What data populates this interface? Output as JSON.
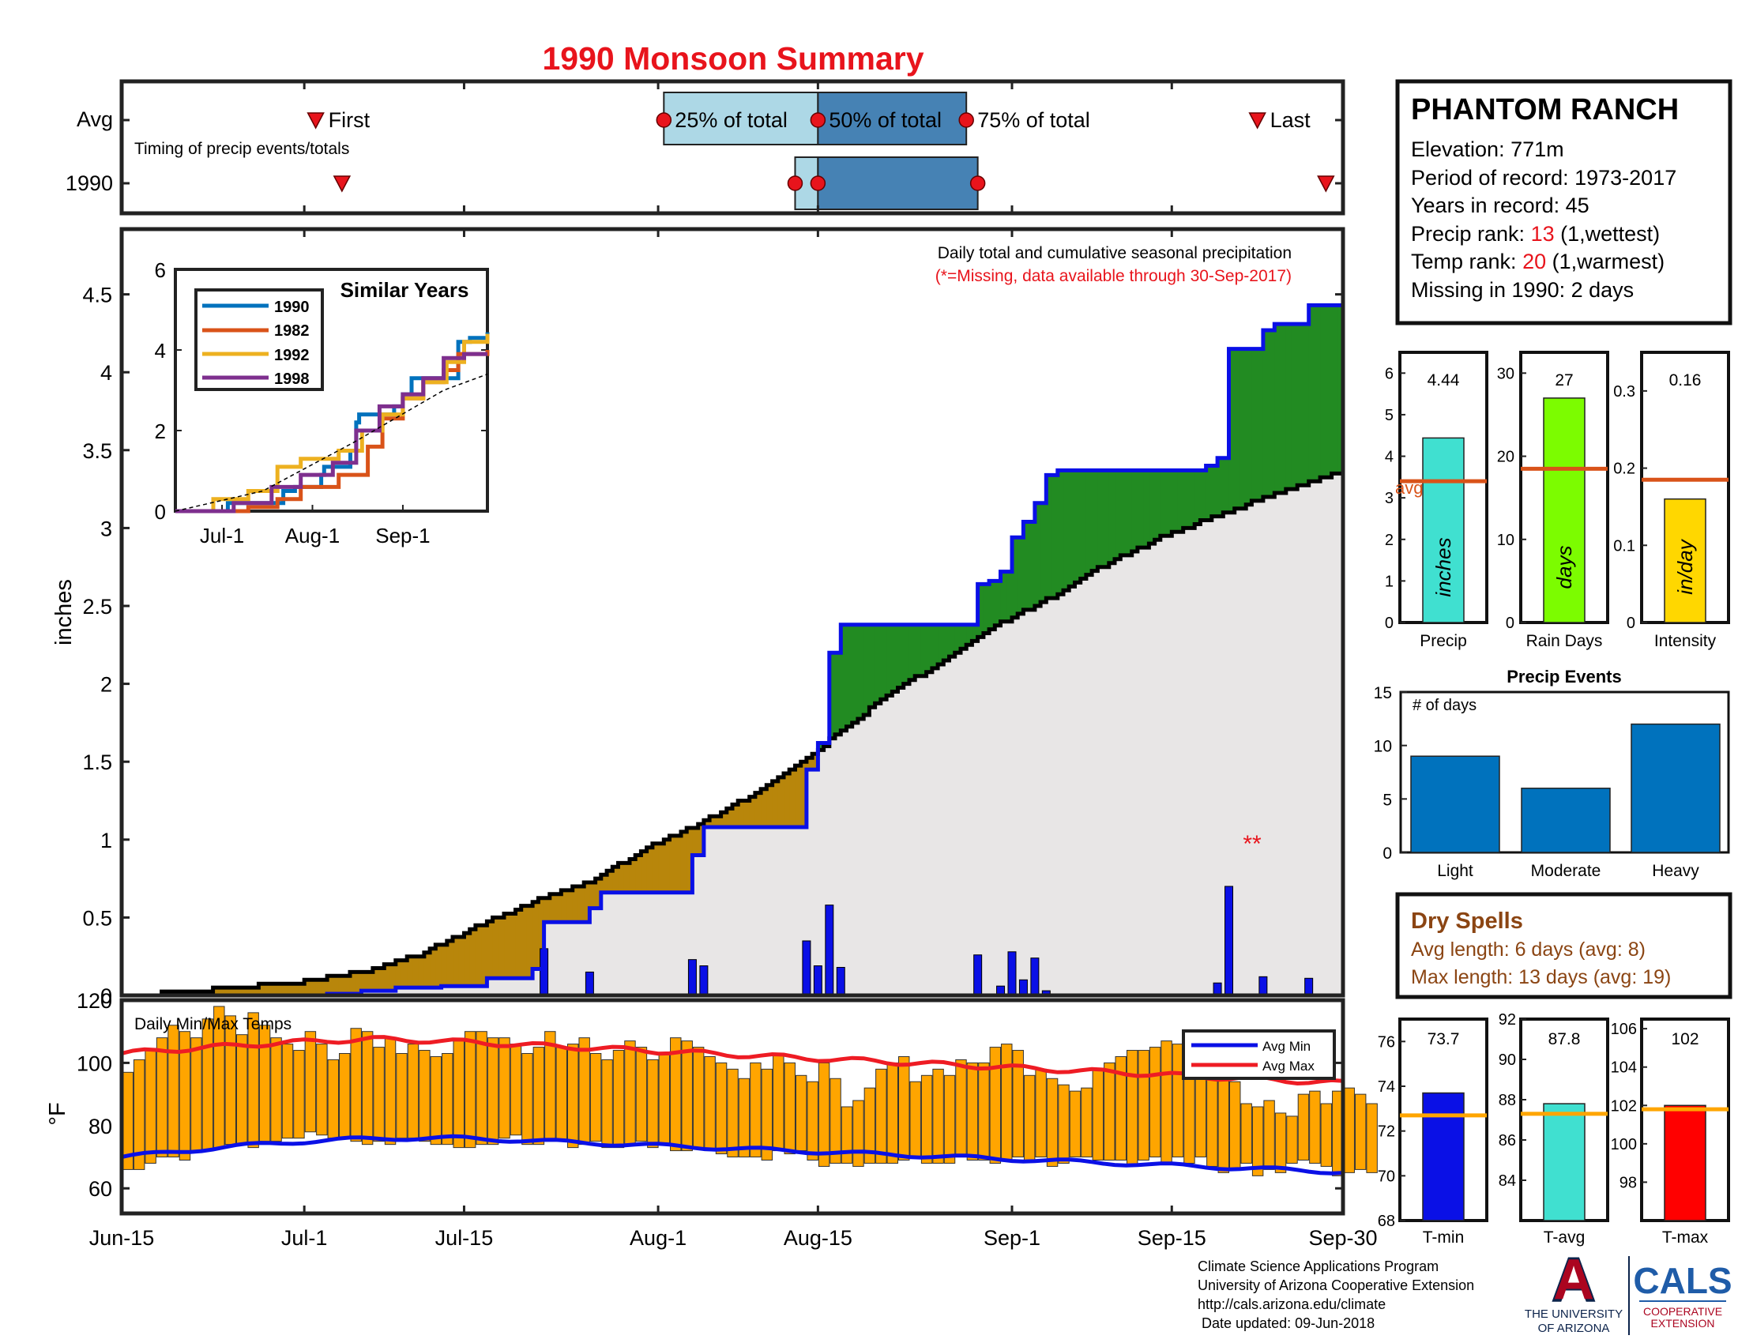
{
  "title": "1990 Monsoon Summary",
  "colors": {
    "red": "#e8141c",
    "avg_line": "#d95319",
    "precip_bar": "#40e0d0",
    "rain_bar": "#7cfc00",
    "intensity_bar": "#ffd700",
    "dry": "#8b4513",
    "green": "#228b22",
    "brown": "#b8860b",
    "gray": "#e8e6e6",
    "blue": "#0a10e6",
    "orange": "#ffa500",
    "event_bar": "#0072bd",
    "arizona_red": "#ab0520",
    "arizona_blue": "#0c234b",
    "cals_blue": "#1f5ca8"
  },
  "timing": {
    "row_avg": "Avg",
    "row_year": "1990",
    "caption": "Timing of precip events/totals",
    "first_label": "First",
    "q25_label": "25% of total",
    "q50_label": "50% of total",
    "q75_label": "75% of total",
    "last_label": "Last",
    "avg": {
      "first": 17.0,
      "q25": 47.5,
      "q50": 61.0,
      "q75": 74.0,
      "last": 99.5
    },
    "year": {
      "first": 19.3,
      "q25": 59.0,
      "q50": 61.0,
      "q75": 75.0,
      "last": 105.5
    }
  },
  "main": {
    "ylabel": "inches",
    "info_line1": "Daily total and cumulative seasonal precipitation",
    "info_line2": "(*=Missing, data available through 30-Sep-2017)",
    "missing_marker": "**",
    "y_ticks": [
      "0",
      "0.5",
      "1",
      "1.5",
      "2",
      "2.5",
      "3",
      "3.5",
      "4",
      "4.5"
    ],
    "x_ticks": [
      "Jun-15",
      "Jul-1",
      "Jul-15",
      "Aug-1",
      "Aug-15",
      "Sep-1",
      "Sep-15",
      "Sep-30"
    ]
  },
  "inset": {
    "title": "Similar Years",
    "x_ticks": [
      "Jul-1",
      "Aug-1",
      "Sep-1"
    ],
    "y_ticks": [
      "0",
      "2",
      "4",
      "6"
    ],
    "legend": [
      "1990",
      "1982",
      "1992",
      "1998"
    ]
  },
  "temps": {
    "label": "Daily Min/Max Temps",
    "ylabel": "°F",
    "y_ticks": [
      "60",
      "80",
      "100",
      "120"
    ],
    "legend_min": "Avg Min",
    "legend_max": "Avg Max"
  },
  "station": {
    "name": "PHANTOM RANCH",
    "elevation": "Elevation: 771m",
    "period": "Period of record: 1973-2017",
    "years": "Years in record: 45",
    "precip_rank_label": "Precip rank: ",
    "precip_rank_value": "13",
    "precip_rank_note": " (1,wettest)",
    "temp_rank_label": "Temp rank: ",
    "temp_rank_value": "20",
    "temp_rank_note": " (1,warmest)",
    "missing": "Missing in 1990: 2 days"
  },
  "stats": {
    "precip": {
      "value_label": "4.44",
      "unit": "inches",
      "xlabel": "Precip",
      "avg_label": "avg",
      "y_ticks": [
        "0",
        "1",
        "2",
        "3",
        "4",
        "5",
        "6"
      ]
    },
    "rain_days": {
      "value_label": "27",
      "unit": "days",
      "xlabel": "Rain Days",
      "y_ticks": [
        "0",
        "10",
        "20",
        "30"
      ]
    },
    "intensity": {
      "value_label": "0.16",
      "unit": "in/day",
      "xlabel": "Intensity",
      "y_ticks": [
        "0",
        "0.1",
        "0.2",
        "0.3"
      ]
    }
  },
  "events": {
    "title": "Precip Events",
    "inner_label": "# of days",
    "y_ticks": [
      "0",
      "5",
      "10",
      "15"
    ]
  },
  "dry_spells": {
    "title": "Dry Spells",
    "avg_length": "Avg length: 6 days (avg: 8)",
    "max_length": "Max length: 13 days (avg: 19)"
  },
  "temp_stats": {
    "tmin": {
      "value_label": "73.7",
      "xlabel": "T-min",
      "y_ticks": [
        "68",
        "70",
        "72",
        "74",
        "76"
      ]
    },
    "tavg": {
      "value_label": "87.8",
      "xlabel": "T-avg",
      "y_ticks": [
        "84",
        "86",
        "88",
        "90",
        "92"
      ]
    },
    "tmax": {
      "value_label": "102",
      "xlabel": "T-max",
      "y_ticks": [
        "98",
        "100",
        "102",
        "104",
        "106"
      ]
    }
  },
  "footer": {
    "line1": "Climate Science Applications Program",
    "line2": "University of Arizona Cooperative Extension",
    "line3": "http://cals.arizona.edu/climate",
    "line4": " Date updated: 09-Jun-2018",
    "ua_line1": "THE UNIVERSITY",
    "ua_line2": "OF ARIZONA",
    "ua_letter": "A",
    "cals": "CALS",
    "cals_sub1": "COOPERATIVE",
    "cals_sub2": "EXTENSION"
  },
  "chart_data": [
    {
      "type": "area",
      "name": "cumulative",
      "title": "Daily total and cumulative seasonal precipitation",
      "ylabel": "inches",
      "xlim": [
        "2017-06-15",
        "2017-09-30"
      ],
      "ylim": [
        0,
        4.93
      ],
      "cum_1990": [
        {
          "x": "2017-06-15",
          "y": 0
        },
        {
          "x": "2017-07-01",
          "y": 0
        },
        {
          "x": "2017-07-03",
          "y": 0.01
        },
        {
          "x": "2017-07-06",
          "y": 0.03
        },
        {
          "x": "2017-07-09",
          "y": 0.05
        },
        {
          "x": "2017-07-13",
          "y": 0.06
        },
        {
          "x": "2017-07-17",
          "y": 0.11
        },
        {
          "x": "2017-07-21",
          "y": 0.17
        },
        {
          "x": "2017-07-22",
          "y": 0.47
        },
        {
          "x": "2017-07-26",
          "y": 0.56
        },
        {
          "x": "2017-07-27",
          "y": 0.66
        },
        {
          "x": "2017-08-04",
          "y": 0.9
        },
        {
          "x": "2017-08-05",
          "y": 1.08
        },
        {
          "x": "2017-08-14",
          "y": 1.45
        },
        {
          "x": "2017-08-15",
          "y": 1.62
        },
        {
          "x": "2017-08-16",
          "y": 2.2
        },
        {
          "x": "2017-08-17",
          "y": 2.38
        },
        {
          "x": "2017-08-28",
          "y": 2.38
        },
        {
          "x": "2017-08-29",
          "y": 2.64
        },
        {
          "x": "2017-08-30",
          "y": 2.66
        },
        {
          "x": "2017-08-31",
          "y": 2.72
        },
        {
          "x": "2017-09-01",
          "y": 2.94
        },
        {
          "x": "2017-09-02",
          "y": 3.04
        },
        {
          "x": "2017-09-03",
          "y": 3.16
        },
        {
          "x": "2017-09-04",
          "y": 3.34
        },
        {
          "x": "2017-09-05",
          "y": 3.37
        },
        {
          "x": "2017-09-18",
          "y": 3.4
        },
        {
          "x": "2017-09-19",
          "y": 3.45
        },
        {
          "x": "2017-09-20",
          "y": 4.15
        },
        {
          "x": "2017-09-23",
          "y": 4.27
        },
        {
          "x": "2017-09-24",
          "y": 4.31
        },
        {
          "x": "2017-09-27",
          "y": 4.43
        },
        {
          "x": "2017-09-30",
          "y": 4.44
        }
      ],
      "cum_avg": [
        {
          "x": "2017-06-15",
          "y": 0
        },
        {
          "x": "2017-06-20",
          "y": 0.02
        },
        {
          "x": "2017-06-25",
          "y": 0.05
        },
        {
          "x": "2017-07-01",
          "y": 0.09
        },
        {
          "x": "2017-07-06",
          "y": 0.15
        },
        {
          "x": "2017-07-11",
          "y": 0.26
        },
        {
          "x": "2017-07-16",
          "y": 0.44
        },
        {
          "x": "2017-07-21",
          "y": 0.6
        },
        {
          "x": "2017-07-26",
          "y": 0.73
        },
        {
          "x": "2017-07-31",
          "y": 0.95
        },
        {
          "x": "2017-08-05",
          "y": 1.12
        },
        {
          "x": "2017-08-10",
          "y": 1.32
        },
        {
          "x": "2017-08-15",
          "y": 1.58
        },
        {
          "x": "2017-08-20",
          "y": 1.87
        },
        {
          "x": "2017-08-25",
          "y": 2.11
        },
        {
          "x": "2017-08-30",
          "y": 2.35
        },
        {
          "x": "2017-09-04",
          "y": 2.54
        },
        {
          "x": "2017-09-09",
          "y": 2.76
        },
        {
          "x": "2017-09-14",
          "y": 2.94
        },
        {
          "x": "2017-09-19",
          "y": 3.08
        },
        {
          "x": "2017-09-24",
          "y": 3.22
        },
        {
          "x": "2017-09-30",
          "y": 3.37
        }
      ]
    },
    {
      "type": "bar",
      "name": "daily_precip_1990",
      "ylabel": "inches",
      "x": [
        "2017-07-22",
        "2017-07-26",
        "2017-08-04",
        "2017-08-05",
        "2017-08-14",
        "2017-08-15",
        "2017-08-16",
        "2017-08-17",
        "2017-08-29",
        "2017-08-31",
        "2017-09-01",
        "2017-09-02",
        "2017-09-03",
        "2017-09-04",
        "2017-09-19",
        "2017-09-20",
        "2017-09-23",
        "2017-09-27"
      ],
      "values": [
        0.3,
        0.15,
        0.23,
        0.19,
        0.35,
        0.19,
        0.58,
        0.18,
        0.26,
        0.06,
        0.28,
        0.1,
        0.24,
        0.03,
        0.08,
        0.7,
        0.12,
        0.11
      ]
    },
    {
      "type": "line",
      "name": "similar_years",
      "title": "Similar Years",
      "xlim": [
        "2017-06-15",
        "2017-09-30"
      ],
      "ylim": [
        0,
        6
      ],
      "series": [
        {
          "name": "1990",
          "color": "#0072bd",
          "points": [
            [
              "2017-06-15",
              0
            ],
            [
              "2017-07-03",
              0.2
            ],
            [
              "2017-07-22",
              0.5
            ],
            [
              "2017-07-26",
              0.6
            ],
            [
              "2017-08-04",
              0.9
            ],
            [
              "2017-08-05",
              1.1
            ],
            [
              "2017-08-14",
              1.5
            ],
            [
              "2017-08-16",
              2.2
            ],
            [
              "2017-08-17",
              2.4
            ],
            [
              "2017-08-29",
              2.6
            ],
            [
              "2017-09-01",
              2.9
            ],
            [
              "2017-09-04",
              3.3
            ],
            [
              "2017-09-20",
              4.2
            ],
            [
              "2017-09-24",
              4.3
            ],
            [
              "2017-09-30",
              4.44
            ]
          ]
        },
        {
          "name": "1982",
          "color": "#d95319",
          "points": [
            [
              "2017-06-15",
              0
            ],
            [
              "2017-07-10",
              0.1
            ],
            [
              "2017-07-20",
              0.3
            ],
            [
              "2017-07-28",
              0.6
            ],
            [
              "2017-08-10",
              0.9
            ],
            [
              "2017-08-20",
              1.6
            ],
            [
              "2017-08-25",
              2.3
            ],
            [
              "2017-09-01",
              2.8
            ],
            [
              "2017-09-08",
              3.2
            ],
            [
              "2017-09-15",
              3.5
            ],
            [
              "2017-09-20",
              3.9
            ],
            [
              "2017-09-30",
              4.0
            ]
          ]
        },
        {
          "name": "1992",
          "color": "#edb120",
          "points": [
            [
              "2017-06-15",
              0
            ],
            [
              "2017-06-28",
              0.3
            ],
            [
              "2017-07-10",
              0.5
            ],
            [
              "2017-07-20",
              1.1
            ],
            [
              "2017-07-28",
              1.3
            ],
            [
              "2017-08-10",
              1.5
            ],
            [
              "2017-08-18",
              2.0
            ],
            [
              "2017-08-25",
              2.4
            ],
            [
              "2017-09-01",
              2.8
            ],
            [
              "2017-09-08",
              3.2
            ],
            [
              "2017-09-16",
              3.7
            ],
            [
              "2017-09-22",
              4.2
            ],
            [
              "2017-09-30",
              4.4
            ]
          ]
        },
        {
          "name": "1998",
          "color": "#7e2f8e",
          "points": [
            [
              "2017-06-15",
              0
            ],
            [
              "2017-07-05",
              0.2
            ],
            [
              "2017-07-18",
              0.6
            ],
            [
              "2017-07-28",
              0.9
            ],
            [
              "2017-08-08",
              1.2
            ],
            [
              "2017-08-16",
              2.0
            ],
            [
              "2017-08-24",
              2.6
            ],
            [
              "2017-09-01",
              2.9
            ],
            [
              "2017-09-08",
              3.3
            ],
            [
              "2017-09-15",
              3.8
            ],
            [
              "2017-09-22",
              3.9
            ],
            [
              "2017-09-30",
              3.9
            ]
          ]
        },
        {
          "name": "avg",
          "color": "#000000",
          "points": [
            [
              "2017-06-15",
              0
            ],
            [
              "2017-07-15",
              0.5
            ],
            [
              "2017-08-15",
              1.7
            ],
            [
              "2017-09-15",
              3.0
            ],
            [
              "2017-09-30",
              3.4
            ]
          ]
        }
      ]
    },
    {
      "type": "bar",
      "name": "daily_temps",
      "title": "Daily Min/Max Temps",
      "ylabel": "°F",
      "ylim": [
        52,
        120
      ],
      "x_start": "2017-06-15",
      "lows": [
        66,
        66,
        68,
        70,
        70,
        69,
        72,
        72,
        73,
        74,
        74,
        73,
        75,
        75,
        76,
        76,
        78,
        77,
        76,
        76,
        75,
        74,
        75,
        74,
        76,
        76,
        75,
        74,
        74,
        73,
        73,
        74,
        74,
        76,
        77,
        74,
        74,
        75,
        75,
        73,
        74,
        75,
        73,
        73,
        74,
        75,
        73,
        74,
        72,
        72,
        73,
        72,
        71,
        70,
        70,
        70,
        69,
        72,
        71,
        72,
        69,
        67,
        68,
        68,
        67,
        68,
        68,
        68,
        69,
        70,
        68,
        68,
        68,
        70,
        69,
        69,
        68,
        69,
        70,
        69,
        70,
        67,
        68,
        70,
        70,
        69,
        69,
        69,
        67,
        69,
        70,
        68,
        70,
        68,
        70,
        67,
        65,
        66,
        68,
        64,
        66,
        65,
        68,
        69,
        68,
        67,
        64,
        65,
        66,
        65
      ],
      "highs": [
        97,
        101,
        104,
        108,
        112,
        110,
        108,
        114,
        118,
        115,
        109,
        116,
        112,
        108,
        106,
        104,
        110,
        106,
        101,
        103,
        111,
        110,
        105,
        108,
        103,
        106,
        104,
        102,
        103,
        107,
        110,
        110,
        108,
        108,
        106,
        103,
        105,
        110,
        105,
        106,
        108,
        103,
        101,
        104,
        107,
        105,
        101,
        103,
        108,
        107,
        105,
        102,
        100,
        98,
        95,
        100,
        98,
        103,
        100,
        96,
        94,
        100,
        95,
        86,
        88,
        92,
        98,
        100,
        102,
        94,
        96,
        98,
        96,
        101,
        100,
        100,
        105,
        106,
        104,
        96,
        98,
        95,
        93,
        91,
        92,
        98,
        100,
        102,
        104,
        104,
        105,
        107,
        106,
        107,
        102,
        98,
        96,
        94,
        87,
        86,
        88,
        84,
        83,
        90,
        91,
        87,
        91,
        92,
        90,
        87
      ]
    },
    {
      "type": "bar",
      "name": "season_stats",
      "categories": [
        "Precip",
        "Rain Days",
        "Intensity"
      ],
      "values": [
        4.44,
        27,
        0.16
      ],
      "avg": [
        3.4,
        18.5,
        0.185
      ],
      "ylim": [
        [
          0,
          6.5
        ],
        [
          0,
          32.5
        ],
        [
          0,
          0.35
        ]
      ]
    },
    {
      "type": "bar",
      "name": "precip_events",
      "title": "Precip Events",
      "ylabel": "# of days",
      "categories": [
        "Light",
        "Moderate",
        "Heavy"
      ],
      "values": [
        9,
        6,
        12
      ],
      "ylim": [
        0,
        15
      ]
    },
    {
      "type": "bar",
      "name": "temp_stats",
      "categories": [
        "T-min",
        "T-avg",
        "T-max"
      ],
      "values": [
        73.7,
        87.8,
        102
      ],
      "avg": [
        72.7,
        87.3,
        101.8
      ],
      "ylim": [
        [
          68,
          77
        ],
        [
          82,
          92
        ],
        [
          96,
          106.5
        ]
      ]
    }
  ]
}
